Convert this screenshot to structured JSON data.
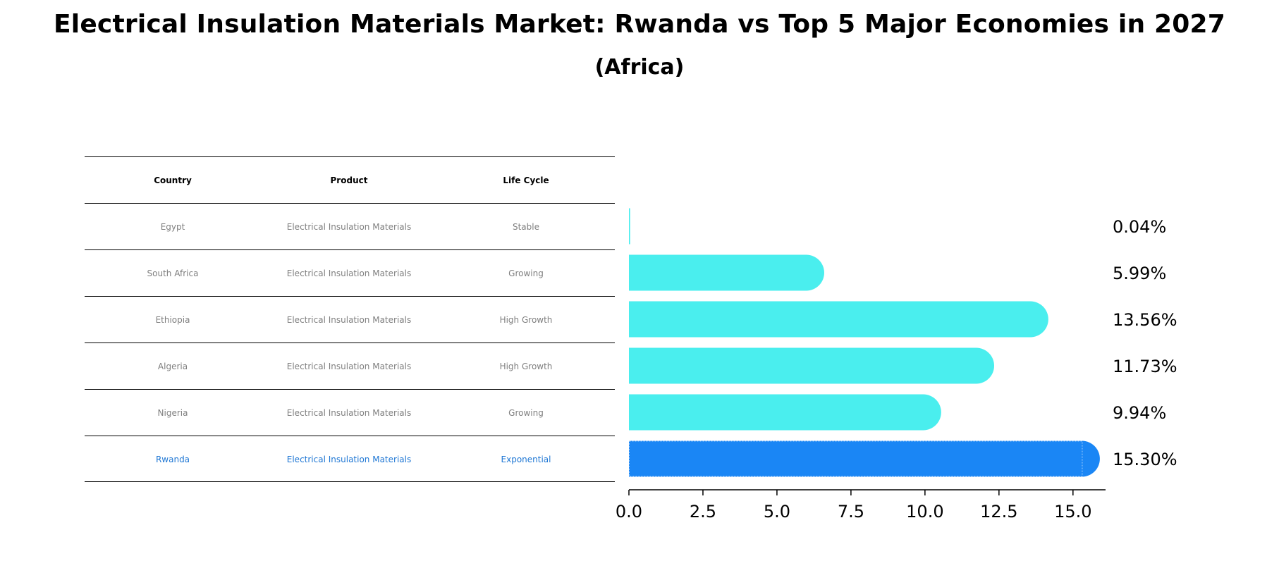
{
  "title": "Electrical Insulation Materials Market: Rwanda vs Top 5 Major Economies in 2027",
  "subtitle": "(Africa)",
  "table": {
    "headers": [
      "Country",
      "Product",
      "Life Cycle"
    ],
    "rows": [
      [
        "Egypt",
        "Electrical Insulation Materials",
        "Stable"
      ],
      [
        "South Africa",
        "Electrical Insulation Materials",
        "Growing"
      ],
      [
        "Ethiopia",
        "Electrical Insulation Materials",
        "High Growth"
      ],
      [
        "Algeria",
        "Electrical Insulation Materials",
        "High Growth"
      ],
      [
        "Nigeria",
        "Electrical Insulation Materials",
        "Growing"
      ],
      [
        "Rwanda",
        "Electrical Insulation Materials",
        "Exponential"
      ]
    ]
  },
  "chart_data": {
    "type": "bar",
    "orientation": "horizontal",
    "categories": [
      "Egypt",
      "South Africa",
      "Ethiopia",
      "Algeria",
      "Nigeria",
      "Rwanda"
    ],
    "values": [
      0.04,
      5.99,
      13.56,
      11.73,
      9.94,
      15.3
    ],
    "value_labels": [
      "0.04%",
      "5.99%",
      "13.56%",
      "11.73%",
      "9.94%",
      "15.30%"
    ],
    "xlim": [
      0,
      16.1
    ],
    "xticks": [
      0.0,
      2.5,
      5.0,
      7.5,
      10.0,
      12.5,
      15.0
    ],
    "xtick_labels": [
      "0.0",
      "2.5",
      "5.0",
      "7.5",
      "10.0",
      "12.5",
      "15.0"
    ],
    "highlight": "Rwanda",
    "colors": {
      "default": "#4aeeee",
      "highlight": "#1a86f5"
    },
    "grid": false
  }
}
